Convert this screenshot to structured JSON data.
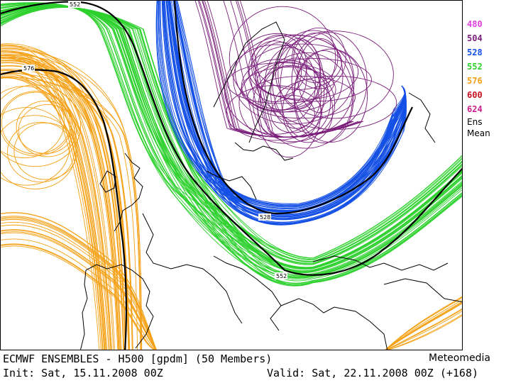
{
  "map": {
    "title": "ECMWF ENSEMBLES - H500 [gpdm] (50 Members)",
    "credit": "Meteomedia",
    "init": "Init: Sat, 15.11.2008 00Z",
    "valid": "Valid: Sat, 22.11.2008 00Z (+168)",
    "contour_labels": [
      "552",
      "576",
      "528",
      "552"
    ],
    "legend": [
      {
        "label": "480",
        "color": "#e040e0"
      },
      {
        "label": "504",
        "color": "#7a1e7a"
      },
      {
        "label": "528",
        "color": "#1450e6"
      },
      {
        "label": "552",
        "color": "#2ed12e"
      },
      {
        "label": "576",
        "color": "#f5a014"
      },
      {
        "label": "600",
        "color": "#c8101e"
      },
      {
        "label": "624",
        "color": "#c8208c"
      }
    ],
    "legend_ens": [
      "Ens",
      "Mean"
    ]
  }
}
